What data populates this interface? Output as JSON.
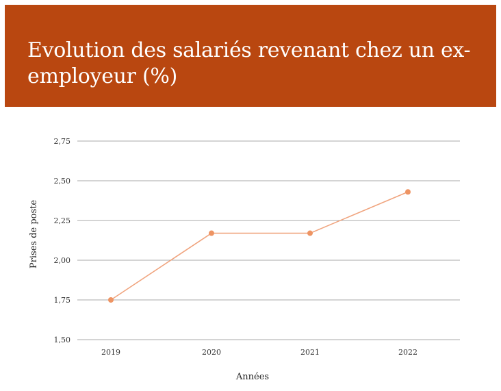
{
  "title": "Evolution des salariés revenant chez un ex-employeur (%)",
  "chart_data": {
    "type": "line",
    "title": "Evolution des salariés revenant chez un ex-employeur (%)",
    "xlabel": "Années",
    "ylabel": "Prises de poste",
    "categories": [
      "2019",
      "2020",
      "2021",
      "2022"
    ],
    "series": [
      {
        "values": [
          1.75,
          2.17,
          2.17,
          2.43
        ]
      }
    ],
    "ylim": [
      1.5,
      2.75
    ],
    "yticks": [
      1.5,
      1.75,
      2.0,
      2.25,
      2.5,
      2.75
    ],
    "ytick_labels": [
      "1,50",
      "1,75",
      "2,00",
      "2,25",
      "2,50",
      "2,75"
    ],
    "grid": true,
    "legend": "none",
    "colors": {
      "banner": "#b94710",
      "line": "#f0a47e",
      "marker": "#ee9463",
      "grid": "#a8a8a8"
    }
  }
}
